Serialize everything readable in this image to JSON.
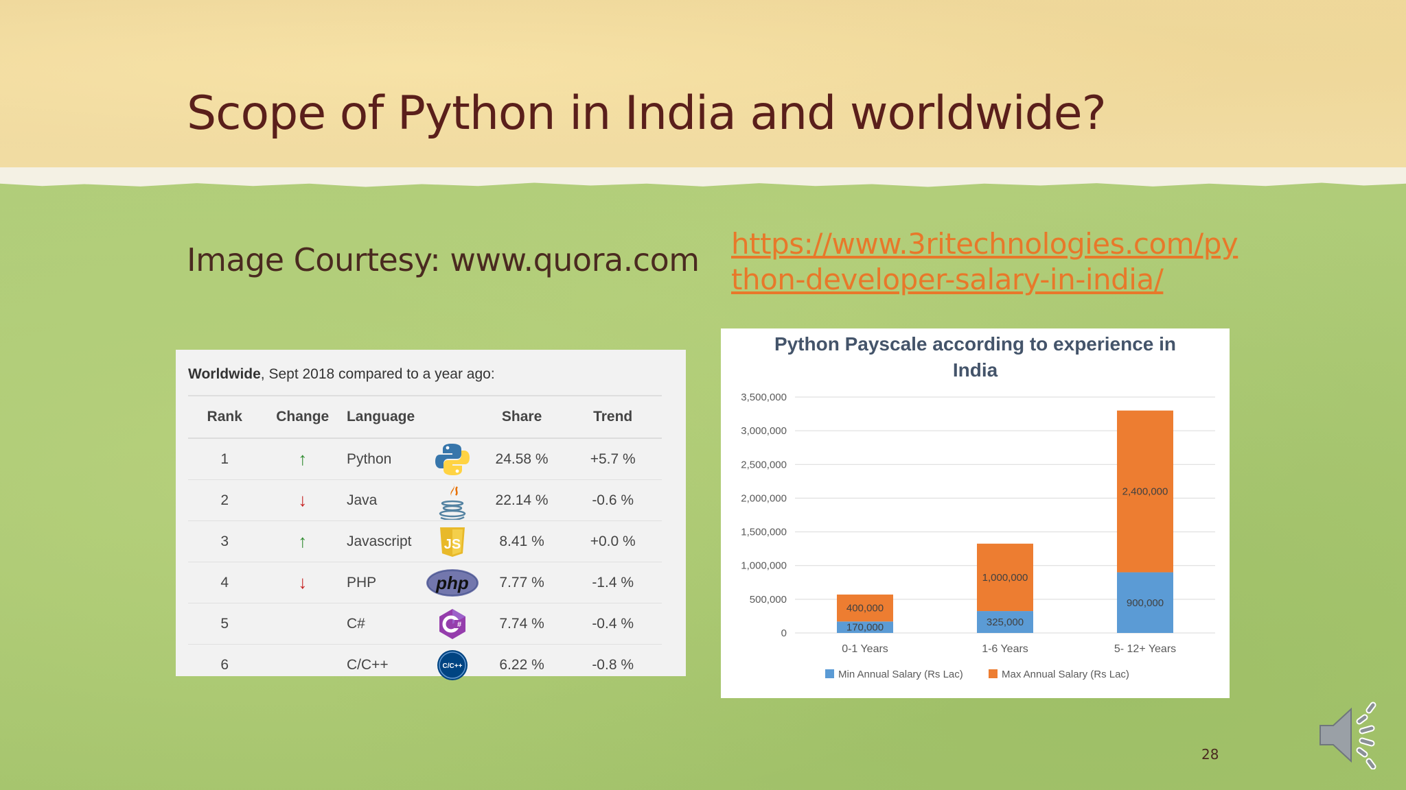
{
  "slide": {
    "title": "Scope of Python in India and worldwide?",
    "courtesy": "Image Courtesy: www.quora.com",
    "link_line1": "https://www.3ritechnologies.com/py",
    "link_line2": "thon-developer-salary-in-india/",
    "page_number": "28",
    "speaker_icon": "speaker-icon",
    "colors": {
      "title": "#5a1f1b",
      "link": "#e8782a"
    }
  },
  "table": {
    "caption_bold": "Worldwide",
    "caption_rest": ", Sept 2018 compared to a year ago:",
    "headers": {
      "rank": "Rank",
      "change": "Change",
      "language": "Language",
      "share": "Share",
      "trend": "Trend"
    },
    "rows": [
      {
        "rank": "1",
        "change": "up",
        "language": "Python",
        "logo": "python-logo",
        "share": "24.58 %",
        "trend": "+5.7 %"
      },
      {
        "rank": "2",
        "change": "down",
        "language": "Java",
        "logo": "java-logo",
        "share": "22.14 %",
        "trend": "-0.6 %"
      },
      {
        "rank": "3",
        "change": "up",
        "language": "Javascript",
        "logo": "javascript-logo",
        "share": "8.41 %",
        "trend": "+0.0 %"
      },
      {
        "rank": "4",
        "change": "down",
        "language": "PHP",
        "logo": "php-logo",
        "share": "7.77 %",
        "trend": "-1.4 %"
      },
      {
        "rank": "5",
        "change": "",
        "language": "C#",
        "logo": "csharp-logo",
        "share": "7.74 %",
        "trend": "-0.4 %"
      },
      {
        "rank": "6",
        "change": "",
        "language": "C/C++",
        "logo": "cpp-logo",
        "share": "6.22 %",
        "trend": "-0.8 %"
      }
    ],
    "logo_text": {
      "php": "php",
      "js": "JS",
      "cpp": "C/C++"
    }
  },
  "chart_data": {
    "type": "bar",
    "stacked": true,
    "title_line1": "Python Payscale according to experience in",
    "title_line2": "India",
    "categories": [
      "0-1 Years",
      "1-6 Years",
      "5- 12+ Years"
    ],
    "series": [
      {
        "name": "Min Annual Salary (Rs Lac)",
        "values": [
          170000,
          325000,
          900000
        ],
        "labels": [
          "170,000",
          "325,000",
          "900,000"
        ],
        "color": "#5b9bd5"
      },
      {
        "name": "Max Annual Salary (Rs Lac)",
        "values": [
          400000,
          1000000,
          2400000
        ],
        "labels": [
          "400,000",
          "1,000,000",
          "2,400,000"
        ],
        "color": "#ed7d31"
      }
    ],
    "ylim": [
      0,
      3500000
    ],
    "yticks": [
      0,
      500000,
      1000000,
      1500000,
      2000000,
      2500000,
      3000000,
      3500000
    ],
    "ytick_labels": [
      "0",
      "500,000",
      "1,000,000",
      "1,500,000",
      "2,000,000",
      "2,500,000",
      "3,000,000",
      "3,500,000"
    ],
    "grid": true,
    "legend_position": "bottom"
  }
}
